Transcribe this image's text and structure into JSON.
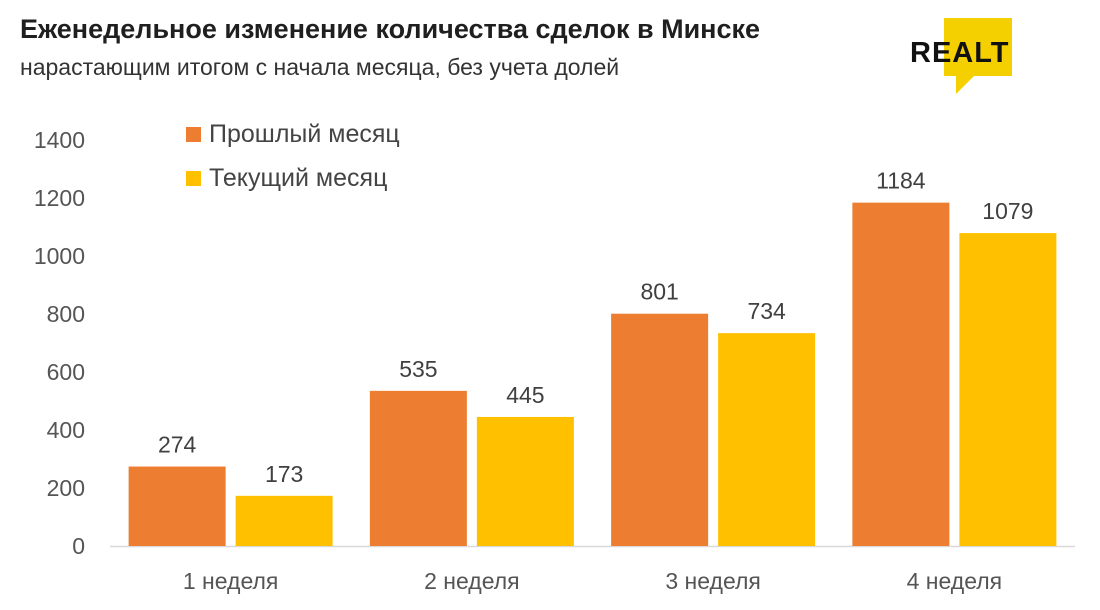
{
  "header": {
    "title": "Еженедельное изменение количества сделок в Минске",
    "subtitle": "нарастающим итогом с начала месяца, без учета долей"
  },
  "logo": {
    "text": "REALT",
    "color": "#f5d000"
  },
  "chart_data": {
    "type": "bar",
    "categories": [
      "1 неделя",
      "2 неделя",
      "3 неделя",
      "4 неделя"
    ],
    "series": [
      {
        "name": "Прошлый месяц",
        "color": "#ed7d31",
        "values": [
          274,
          535,
          801,
          1184
        ]
      },
      {
        "name": "Текущий месяц",
        "color": "#ffc000",
        "values": [
          173,
          445,
          734,
          1079
        ]
      }
    ],
    "ylim": [
      0,
      1400
    ],
    "yticks": [
      0,
      200,
      400,
      600,
      800,
      1000,
      1200,
      1400
    ],
    "grid": false,
    "legend_position": "top-left",
    "data_labels": true
  }
}
